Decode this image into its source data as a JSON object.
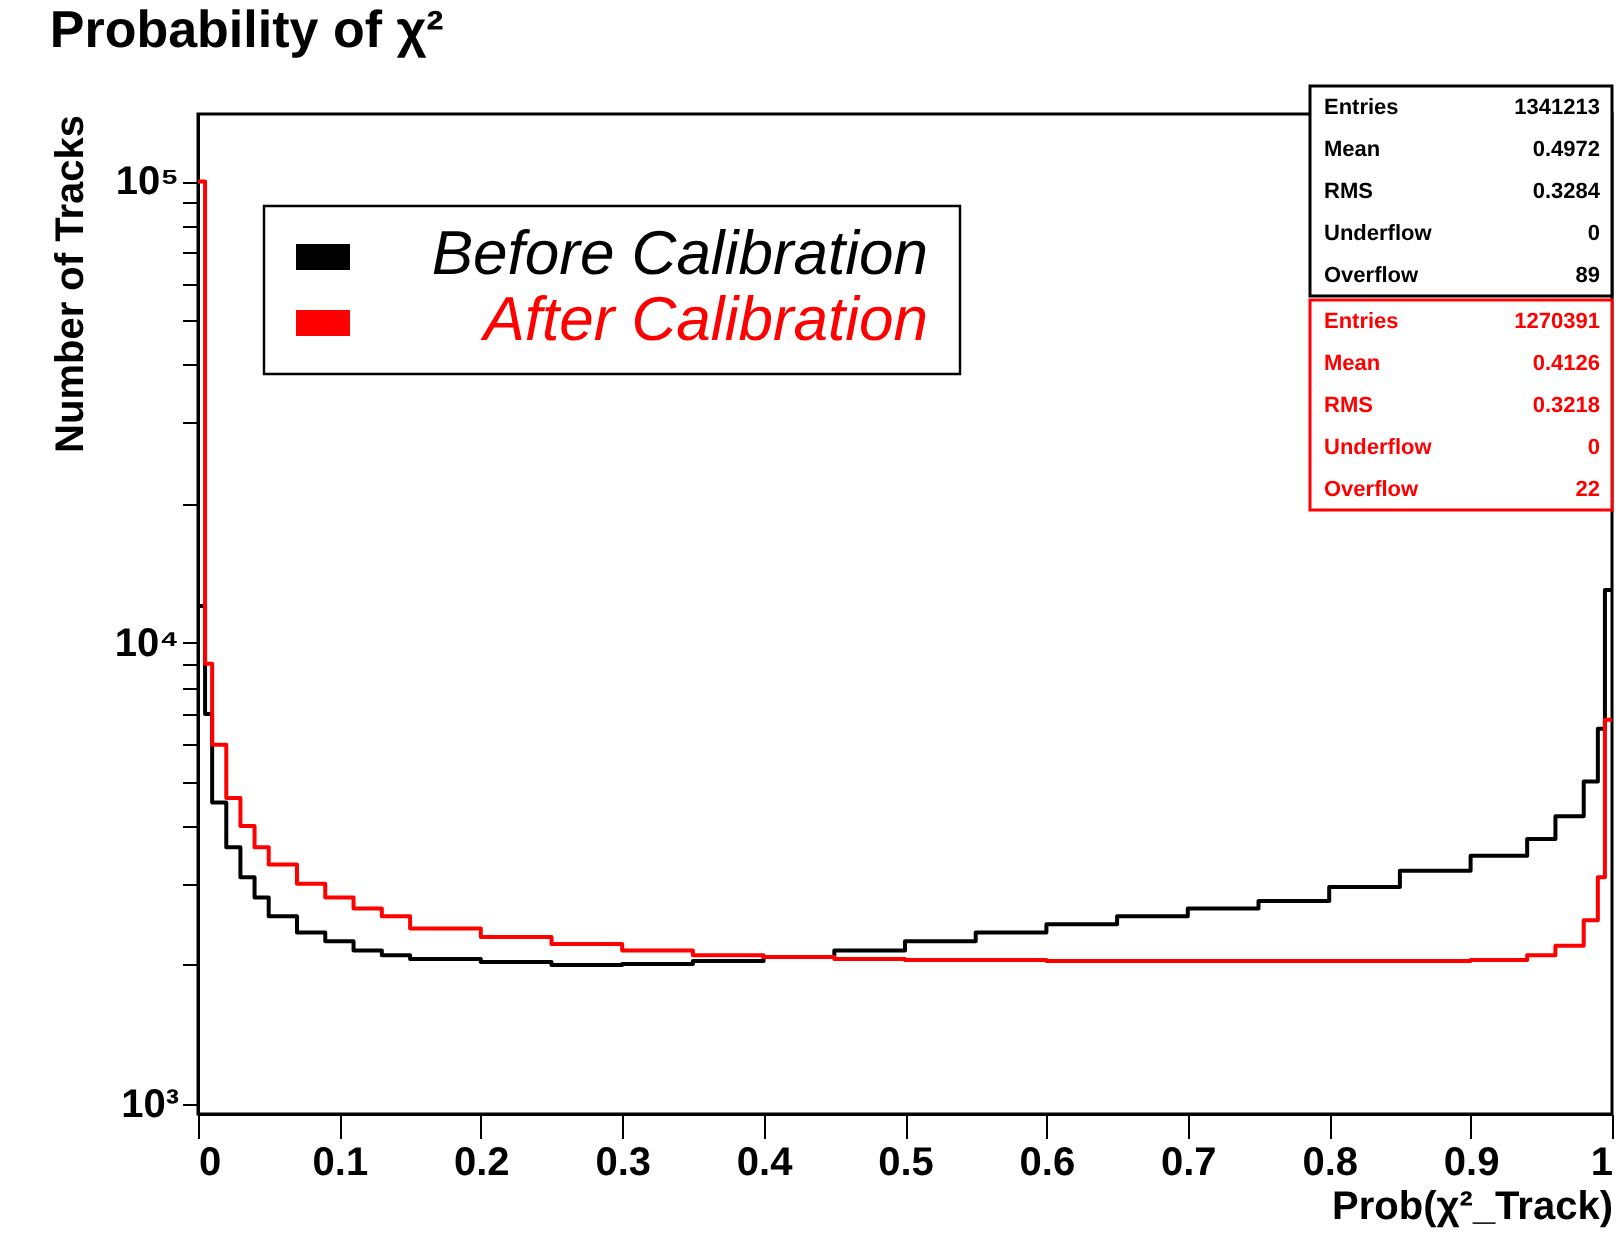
{
  "chart_data": {
    "type": "histogram",
    "title": "Probability of χ²",
    "xlabel": "Prob(χ²_Track)",
    "ylabel": "Number of Tracks",
    "bins": [
      0,
      0.005,
      0.01,
      0.02,
      0.03,
      0.04,
      0.05,
      0.07,
      0.09,
      0.11,
      0.13,
      0.15,
      0.2,
      0.25,
      0.3,
      0.35,
      0.4,
      0.45,
      0.5,
      0.55,
      0.6,
      0.65,
      0.7,
      0.75,
      0.8,
      0.85,
      0.9,
      0.94,
      0.96,
      0.98,
      0.99,
      0.995,
      1
    ],
    "series": [
      {
        "name": "Before Calibration",
        "color": "#000000",
        "values": [
          12000,
          7000,
          4500,
          3600,
          3100,
          2800,
          2550,
          2350,
          2250,
          2150,
          2100,
          2060,
          2030,
          2000,
          2010,
          2040,
          2080,
          2150,
          2250,
          2350,
          2450,
          2550,
          2650,
          2750,
          2950,
          3200,
          3450,
          3750,
          4200,
          5000,
          6500,
          13000
        ]
      },
      {
        "name": "After Calibration",
        "color": "#ff0000",
        "values": [
          100000,
          9000,
          6000,
          4600,
          4000,
          3600,
          3300,
          3000,
          2800,
          2650,
          2550,
          2400,
          2300,
          2220,
          2150,
          2100,
          2080,
          2060,
          2050,
          2050,
          2040,
          2040,
          2040,
          2040,
          2040,
          2040,
          2050,
          2100,
          2200,
          2500,
          3100,
          6800
        ]
      }
    ],
    "log": true,
    "xlim": [
      0,
      1
    ],
    "ylim": [
      950,
      140000
    ],
    "xticks": [
      0,
      0.1,
      0.2,
      0.3,
      0.4,
      0.5,
      0.6,
      0.7,
      0.8,
      0.9,
      1
    ],
    "yticks": [
      {
        "value": 1000,
        "label": "10³"
      },
      {
        "value": 2000,
        "label": null
      },
      {
        "value": 3000,
        "label": null
      },
      {
        "value": 4000,
        "label": null
      },
      {
        "value": 5000,
        "label": null
      },
      {
        "value": 6000,
        "label": null
      },
      {
        "value": 7000,
        "label": null
      },
      {
        "value": 8000,
        "label": null
      },
      {
        "value": 9000,
        "label": null
      },
      {
        "value": 10000,
        "label": "10⁴"
      },
      {
        "value": 20000,
        "label": null
      },
      {
        "value": 30000,
        "label": null
      },
      {
        "value": 40000,
        "label": null
      },
      {
        "value": 50000,
        "label": null
      },
      {
        "value": 60000,
        "label": null
      },
      {
        "value": 70000,
        "label": null
      },
      {
        "value": 80000,
        "label": null
      },
      {
        "value": 90000,
        "label": null
      },
      {
        "value": 100000,
        "label": "10⁵"
      }
    ],
    "grid": false,
    "legend": "top left",
    "annotations": [
      "Entries 1341213",
      "Mean 0.4972",
      "RMS 0.3284",
      "Underflow 0",
      "Overflow 89",
      "Entries 1270391",
      "Mean 0.4126",
      "RMS 0.3218",
      "Underflow 0",
      "Overflow 22"
    ]
  }
}
